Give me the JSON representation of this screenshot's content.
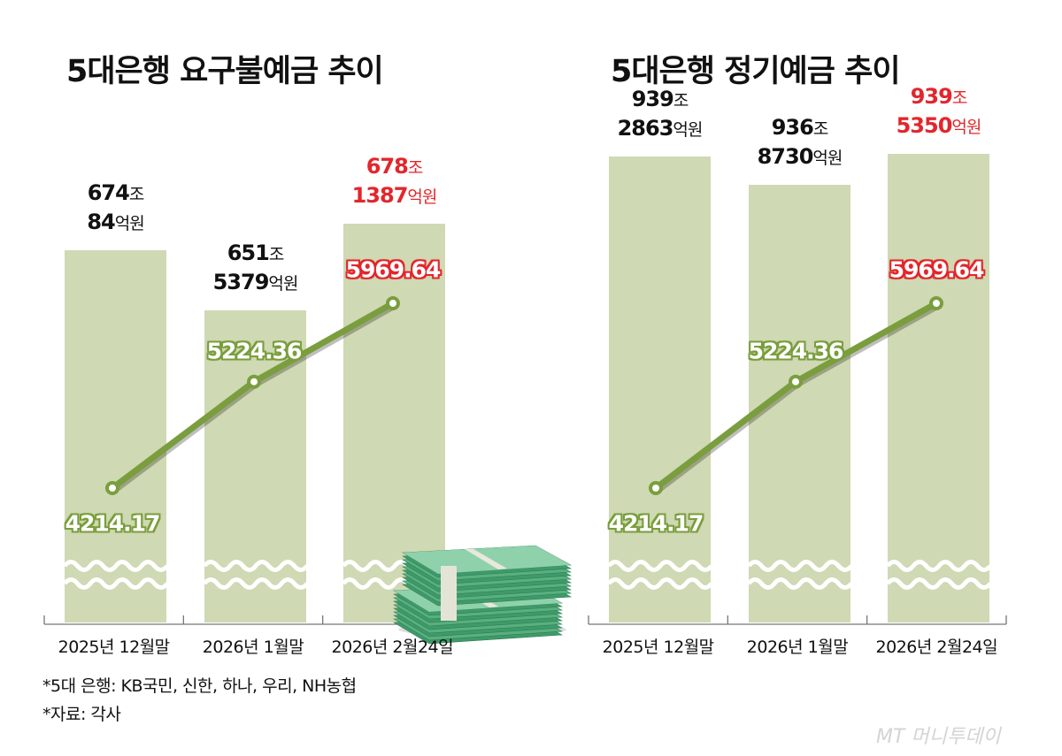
{
  "colors": {
    "bar": "#cfd9b3",
    "line": "#7a9e3d",
    "highlight": "#e3262c",
    "text": "#111111"
  },
  "chart_data": [
    {
      "type": "bar",
      "title": "5대은행 요구불예금 추이",
      "categories": [
        "2025년 12월말",
        "2026년 1월말",
        "2026년 2월24일"
      ],
      "values": [
        6740084,
        6515379,
        6781387
      ],
      "value_unit": "억원",
      "data_labels": [
        {
          "main": "674",
          "main_unit": "조",
          "sub": "84",
          "sub_unit": "억원",
          "highlight": false
        },
        {
          "main": "651",
          "main_unit": "조",
          "sub": "5379",
          "sub_unit": "억원",
          "highlight": false
        },
        {
          "main": "678",
          "main_unit": "조",
          "sub": "1387",
          "sub_unit": "억원",
          "highlight": true
        }
      ],
      "axis_break": true,
      "line_series": {
        "values": [
          4214.17,
          5224.36,
          5969.64
        ],
        "labels": [
          "4214.17",
          "5224.36",
          "5969.64"
        ]
      }
    },
    {
      "type": "bar",
      "title": "5대은행 정기예금 추이",
      "categories": [
        "2025년 12월말",
        "2026년 1월말",
        "2026년 2월24일"
      ],
      "values": [
        9392863,
        9368730,
        9395350
      ],
      "value_unit": "억원",
      "data_labels": [
        {
          "main": "939",
          "main_unit": "조",
          "sub": "2863",
          "sub_unit": "억원",
          "highlight": false
        },
        {
          "main": "936",
          "main_unit": "조",
          "sub": "8730",
          "sub_unit": "억원",
          "highlight": false
        },
        {
          "main": "939",
          "main_unit": "조",
          "sub": "5350",
          "sub_unit": "억원",
          "highlight": true
        }
      ],
      "axis_break": true,
      "line_series": {
        "values": [
          4214.17,
          5224.36,
          5969.64
        ],
        "labels": [
          "4214.17",
          "5224.36",
          "5969.64"
        ]
      }
    }
  ],
  "footnotes": [
    "*5대 은행: KB국민, 신한, 하나, 우리, NH농협",
    "*자료: 각사"
  ],
  "logo": "MT 머니투데이",
  "illustration": "money-stack-icon"
}
